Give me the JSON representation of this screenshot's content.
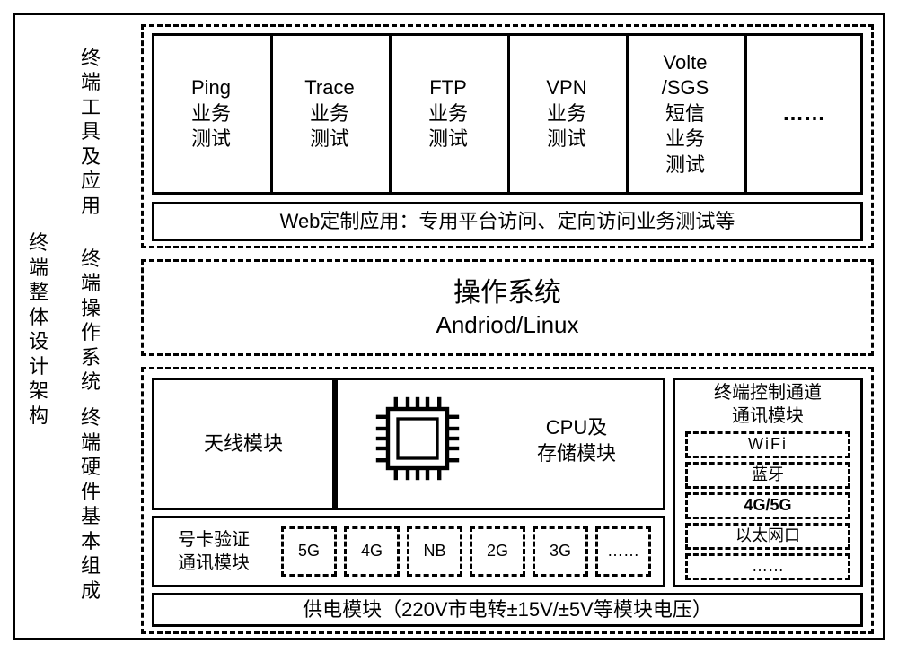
{
  "leftMain": "终端整体设计架构",
  "sections": {
    "tools": {
      "label": "终端工具及应用"
    },
    "os": {
      "label": "终端操作系统"
    },
    "hw": {
      "label": "终端硬件基本组成"
    }
  },
  "toolsRow": {
    "items": [
      {
        "title": "Ping",
        "sub": "业务\n测试"
      },
      {
        "title": "Trace",
        "sub": "业务\n测试"
      },
      {
        "title": "FTP",
        "sub": "业务\n测试"
      },
      {
        "title": "VPN",
        "sub": "业务\n测试"
      },
      {
        "title": "Volte\n/SGS",
        "sub": "短信\n业务\n测试"
      },
      {
        "title": "……",
        "sub": ""
      }
    ],
    "footer": "Web定制应用：专用平台访问、定向访问业务测试等"
  },
  "osBox": {
    "line1": "操作系统",
    "line2": "Andriod/Linux"
  },
  "hw": {
    "antenna": "天线模块",
    "cpu": "CPU及\n存储模块",
    "simLabel": "号卡验证\n通讯模块",
    "simItems": [
      "5G",
      "4G",
      "NB",
      "2G",
      "3G",
      "……"
    ],
    "ctrl": {
      "title": "终端控制通道\n通讯模块",
      "items": [
        "WiFi",
        "蓝牙",
        "4G/5G",
        "以太网口",
        "……"
      ]
    },
    "power": "供电模块（220V市电转±15V/±5V等模块电压）"
  },
  "colors": {
    "line": "#000000",
    "bg": "#ffffff"
  }
}
